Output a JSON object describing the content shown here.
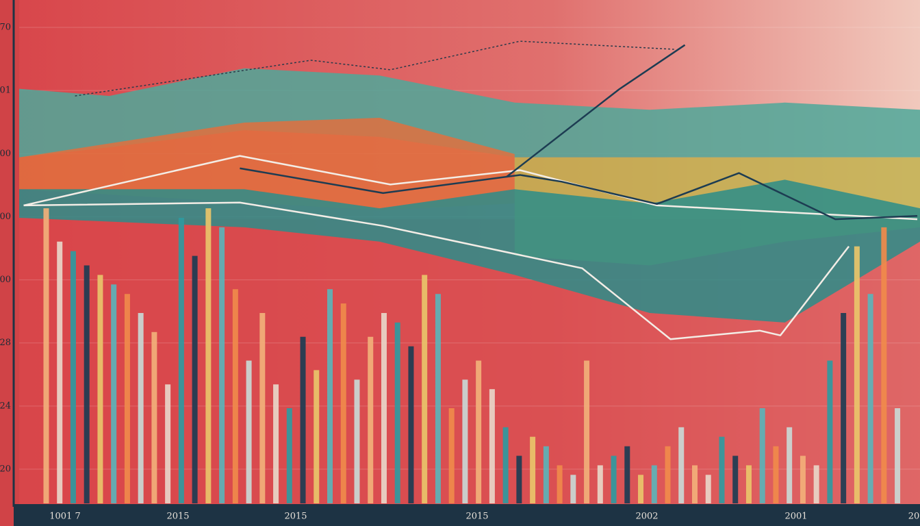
{
  "chart_data": {
    "type": "bar",
    "xlim": [
      0,
      100
    ],
    "ylim": [
      0,
      100
    ],
    "x_labels": [
      "1001 7",
      "2015",
      "2015",
      "2015",
      "2002",
      "2001",
      "20"
    ],
    "y_labels": [
      "70",
      "01",
      "00",
      "00",
      "00",
      "28",
      "24",
      "20"
    ],
    "grid": true,
    "palette": [
      "#f2b07a",
      "#e8d6c8",
      "#2f9aa0",
      "#1d3c52",
      "#e9c46a",
      "#5bb3b8",
      "#f08a4b",
      "#c9d8d5"
    ],
    "layers": [
      {
        "type": "area",
        "color": "#4fa89a",
        "x": [
          0,
          10,
          25,
          40,
          55,
          70,
          85,
          100
        ],
        "values": [
          87.1,
          85.6,
          91.4,
          89.9,
          84.2,
          82.7,
          84.2,
          82.7
        ],
        "base": [
          72.7,
          74.8,
          78.4,
          77,
          72.7,
          72.7,
          72.7,
          72.7
        ]
      },
      {
        "type": "area",
        "color": "#e0703e",
        "x": [
          0,
          25,
          40,
          55
        ],
        "values": [
          72.7,
          80,
          81,
          73.4
        ],
        "base": [
          66,
          63.2,
          61.6,
          63
        ]
      },
      {
        "type": "area",
        "color": "#c2b24f",
        "x": [
          55,
          70,
          85,
          100
        ],
        "values": [
          72.7,
          72.7,
          72.7,
          72.7
        ],
        "base": [
          52,
          50,
          55,
          58
        ]
      },
      {
        "type": "area",
        "color": "#2b8d8a",
        "x": [
          0,
          25,
          40,
          55,
          70,
          85,
          100
        ],
        "values": [
          66,
          66,
          62,
          66,
          63,
          68,
          62
        ],
        "base": [
          60,
          58,
          55,
          48,
          40,
          38,
          55
        ]
      },
      {
        "type": "bar",
        "x": [
          3,
          4.5,
          6,
          7.5,
          9,
          10.5,
          12,
          13.5,
          15,
          16.5,
          18,
          19.5,
          21,
          22.5,
          24,
          25.5,
          27,
          28.5,
          30,
          31.5,
          33,
          34.5,
          36,
          37.5,
          39,
          40.5,
          42,
          43.5,
          45,
          46.5,
          48,
          49.5,
          51,
          52.5,
          54,
          55.5,
          57,
          58.5,
          60,
          61.5,
          63,
          64.5,
          66,
          67.5,
          69,
          70.5,
          72,
          73.5,
          75,
          76.5,
          78,
          79.5,
          81,
          82.5,
          84,
          85.5,
          87,
          88.5,
          90,
          91.5,
          93,
          94.5,
          96,
          97.5
        ],
        "values": [
          62,
          55,
          53,
          50,
          48,
          46,
          44,
          40,
          36,
          25,
          60,
          52,
          62,
          58,
          45,
          30,
          40,
          25,
          20,
          35,
          28,
          45,
          42,
          26,
          35,
          40,
          38,
          33,
          48,
          44,
          20,
          26,
          30,
          24,
          16,
          10,
          14,
          12,
          8,
          6,
          30,
          8,
          10,
          12,
          6,
          8,
          12,
          16,
          8,
          6,
          14,
          10,
          8,
          20,
          12,
          16,
          10,
          8,
          30,
          40,
          54,
          44,
          58,
          20
        ]
      },
      {
        "type": "line",
        "color": "#f3ede6",
        "x": [
          0.5,
          24.5,
          41.2,
          55.6,
          70.8,
          99.7
        ],
        "values": [
          62.6,
          73,
          67,
          70,
          62.6,
          59.7
        ]
      },
      {
        "type": "line",
        "color": "#1d3c52",
        "x": [
          24.5,
          40.4,
          55.6,
          60.2,
          70.8,
          79.9,
          90.6,
          99.7
        ],
        "values": [
          70.4,
          65.2,
          69,
          67.6,
          62.9,
          69.4,
          59.7,
          60.4
        ]
      },
      {
        "type": "line",
        "color": "#1d3c52",
        "x": [
          54.1,
          66.6,
          73.9
        ],
        "values": [
          68.6,
          87,
          96.3
        ]
      },
      {
        "type": "line",
        "color": "#2a3a4a",
        "dashed": true,
        "x": [
          6.2,
          32.4,
          41.2,
          55.6,
          72.7
        ],
        "values": [
          85.6,
          93.1,
          91.1,
          97.1,
          95.4
        ]
      },
      {
        "type": "line",
        "color": "#f3ede6",
        "x": [
          0.5,
          24.5,
          40.4,
          62.5,
          72.3,
          82.2,
          84.5,
          92.1
        ],
        "values": [
          62.6,
          63.2,
          58.3,
          49.4,
          34.5,
          36.3,
          35.3,
          54
        ]
      }
    ]
  }
}
